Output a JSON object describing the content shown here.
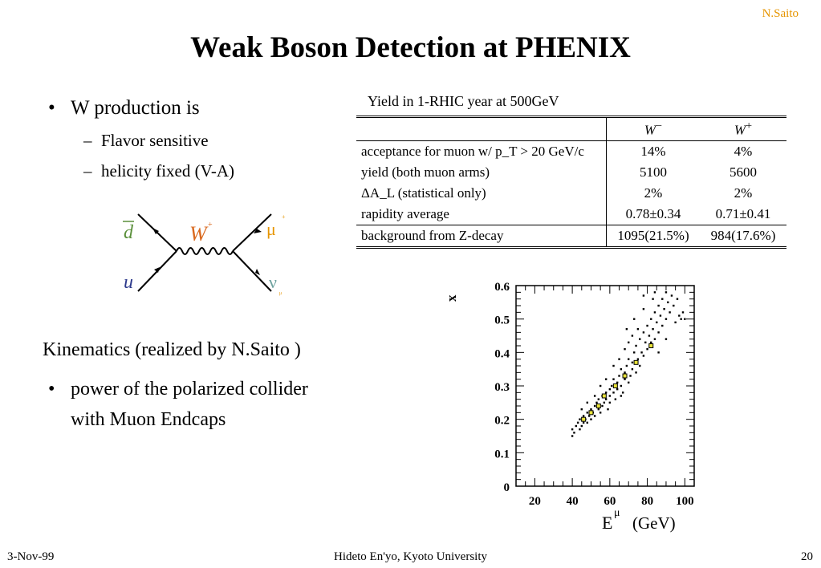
{
  "header": {
    "author": "N.Saito"
  },
  "title": "Weak Boson Detection at PHENIX",
  "bullets": {
    "main": "W production is",
    "sub1": "Flavor sensitive",
    "sub2": "helicity fixed (V-A)"
  },
  "feynman": {
    "dbar": "d",
    "u": "u",
    "w": "W",
    "w_charge": "+",
    "mu": "μ",
    "mu_charge": "+",
    "nu": "ν",
    "nu_sub": "μ"
  },
  "table": {
    "caption": "Yield  in 1-RHIC year at 500GeV",
    "col_minus": "W",
    "col_minus_sup": "−",
    "col_plus": "W",
    "col_plus_sup": "+",
    "rows": [
      {
        "label": "acceptance for muon w/ p_T > 20 GeV/c",
        "wm": "14%",
        "wp": "4%"
      },
      {
        "label": "yield (both muon arms)",
        "wm": "5100",
        "wp": "5600"
      },
      {
        "label": "ΔA_L (statistical only)",
        "wm": "2%",
        "wp": "2%"
      },
      {
        "label": "rapidity average",
        "wm": "0.78±0.34",
        "wp": "0.71±0.41"
      },
      {
        "label": "background from Z-decay",
        "wm": "1095(21.5%)",
        "wp": "984(17.6%)"
      }
    ]
  },
  "kinematics": {
    "heading": "Kinematics (realized by N.Saito )",
    "bullet_line1": "power of the polarized collider",
    "bullet_line2": "with Muon Endcaps"
  },
  "chart_data": {
    "type": "scatter",
    "xlabel": "E",
    "xlabel_sup": "μ",
    "xlabel_unit": "(GeV)",
    "ylabel": "x",
    "xlim": [
      10,
      105
    ],
    "ylim": [
      0,
      0.6
    ],
    "xticks": [
      "20",
      "40",
      "60",
      "80",
      "100"
    ],
    "yticks": [
      "0",
      "0.1",
      "0.2",
      "0.3",
      "0.4",
      "0.5",
      "0.6"
    ],
    "points": [
      [
        40,
        0.15
      ],
      [
        40,
        0.17
      ],
      [
        41,
        0.16
      ],
      [
        42,
        0.18
      ],
      [
        43,
        0.19
      ],
      [
        44,
        0.17
      ],
      [
        44,
        0.2
      ],
      [
        45,
        0.18
      ],
      [
        46,
        0.21
      ],
      [
        46,
        0.19
      ],
      [
        47,
        0.2
      ],
      [
        48,
        0.22
      ],
      [
        48,
        0.19
      ],
      [
        49,
        0.21
      ],
      [
        50,
        0.23
      ],
      [
        50,
        0.2
      ],
      [
        51,
        0.22
      ],
      [
        52,
        0.24
      ],
      [
        52,
        0.21
      ],
      [
        53,
        0.25
      ],
      [
        54,
        0.23
      ],
      [
        54,
        0.26
      ],
      [
        55,
        0.22
      ],
      [
        56,
        0.27
      ],
      [
        56,
        0.24
      ],
      [
        57,
        0.25
      ],
      [
        58,
        0.28
      ],
      [
        58,
        0.26
      ],
      [
        59,
        0.23
      ],
      [
        60,
        0.29
      ],
      [
        60,
        0.27
      ],
      [
        61,
        0.3
      ],
      [
        62,
        0.28
      ],
      [
        62,
        0.32
      ],
      [
        63,
        0.26
      ],
      [
        64,
        0.31
      ],
      [
        64,
        0.29
      ],
      [
        65,
        0.33
      ],
      [
        66,
        0.3
      ],
      [
        66,
        0.35
      ],
      [
        67,
        0.28
      ],
      [
        68,
        0.34
      ],
      [
        68,
        0.32
      ],
      [
        69,
        0.36
      ],
      [
        70,
        0.31
      ],
      [
        70,
        0.38
      ],
      [
        71,
        0.33
      ],
      [
        72,
        0.37
      ],
      [
        72,
        0.35
      ],
      [
        73,
        0.4
      ],
      [
        74,
        0.34
      ],
      [
        74,
        0.42
      ],
      [
        75,
        0.38
      ],
      [
        76,
        0.36
      ],
      [
        76,
        0.44
      ],
      [
        77,
        0.4
      ],
      [
        78,
        0.46
      ],
      [
        78,
        0.39
      ],
      [
        79,
        0.43
      ],
      [
        80,
        0.48
      ],
      [
        80,
        0.41
      ],
      [
        81,
        0.45
      ],
      [
        82,
        0.5
      ],
      [
        82,
        0.43
      ],
      [
        83,
        0.47
      ],
      [
        84,
        0.52
      ],
      [
        84,
        0.44
      ],
      [
        85,
        0.49
      ],
      [
        86,
        0.54
      ],
      [
        86,
        0.46
      ],
      [
        87,
        0.51
      ],
      [
        88,
        0.56
      ],
      [
        88,
        0.48
      ],
      [
        89,
        0.53
      ],
      [
        90,
        0.58
      ],
      [
        90,
        0.5
      ],
      [
        91,
        0.55
      ],
      [
        92,
        0.52
      ],
      [
        93,
        0.57
      ],
      [
        94,
        0.54
      ],
      [
        95,
        0.49
      ],
      [
        96,
        0.56
      ],
      [
        97,
        0.51
      ],
      [
        98,
        0.5
      ],
      [
        99,
        0.52
      ],
      [
        100,
        0.5
      ],
      [
        65,
        0.38
      ],
      [
        70,
        0.43
      ],
      [
        75,
        0.47
      ],
      [
        68,
        0.41
      ],
      [
        72,
        0.45
      ],
      [
        78,
        0.53
      ],
      [
        83,
        0.56
      ],
      [
        62,
        0.36
      ],
      [
        58,
        0.32
      ],
      [
        55,
        0.3
      ],
      [
        86,
        0.4
      ],
      [
        90,
        0.44
      ],
      [
        60,
        0.25
      ],
      [
        66,
        0.27
      ],
      [
        45,
        0.23
      ],
      [
        52,
        0.27
      ],
      [
        48,
        0.25
      ],
      [
        78,
        0.57
      ],
      [
        84,
        0.58
      ],
      [
        73,
        0.5
      ],
      [
        69,
        0.47
      ]
    ],
    "highlight_points": [
      [
        46,
        0.2
      ],
      [
        50,
        0.22
      ],
      [
        54,
        0.24
      ],
      [
        57,
        0.27
      ],
      [
        63,
        0.3
      ],
      [
        68,
        0.33
      ],
      [
        74,
        0.37
      ],
      [
        82,
        0.42
      ]
    ]
  },
  "footer": {
    "date": "3-Nov-99",
    "center": "Hideto En'yo, Kyoto University",
    "page": "20"
  }
}
